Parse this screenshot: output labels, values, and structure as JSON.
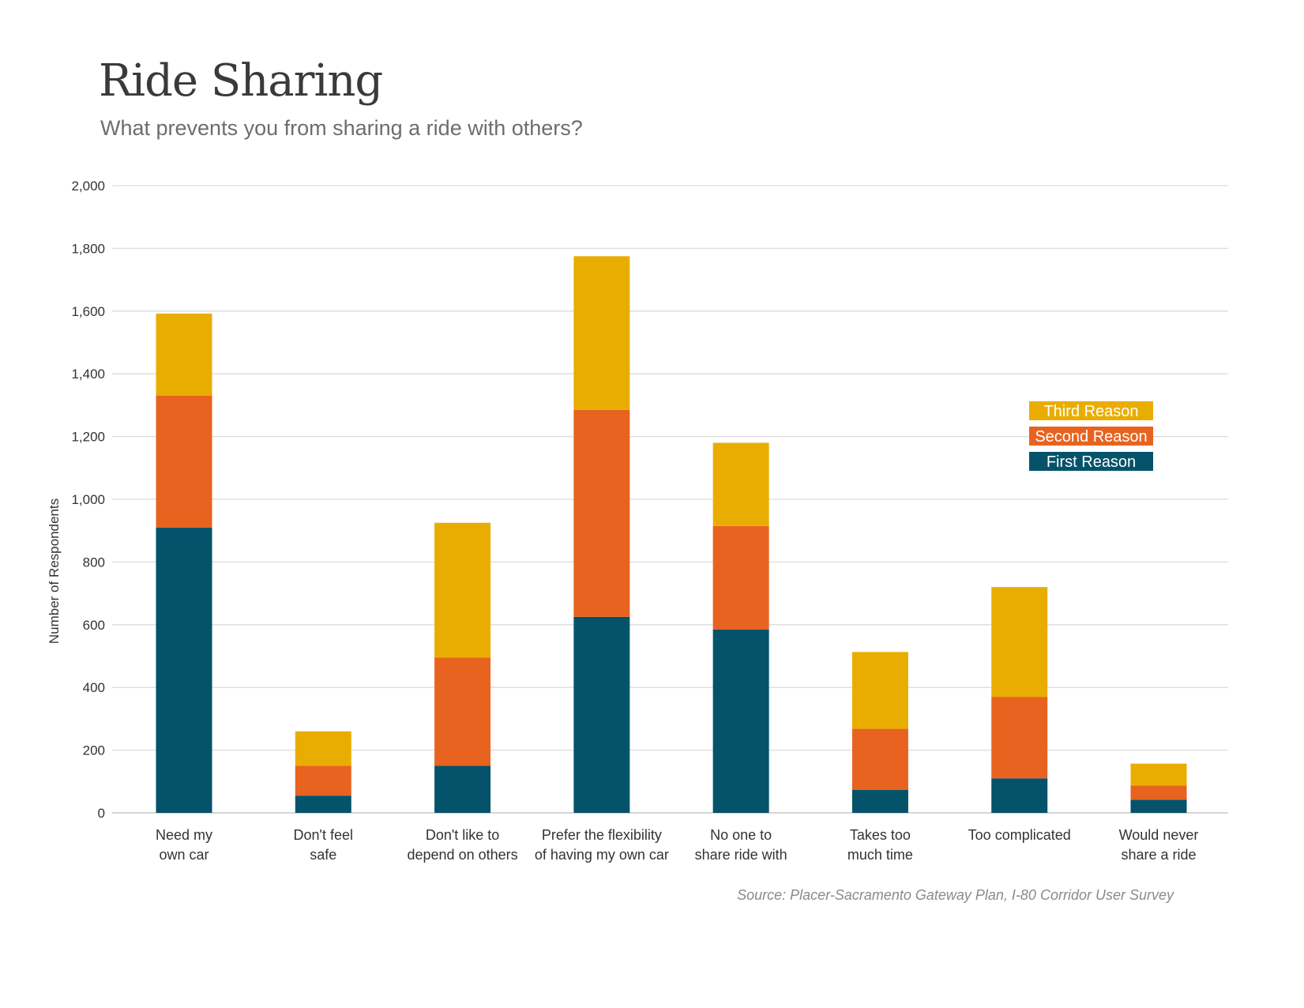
{
  "chart_data": {
    "type": "bar",
    "stacked": true,
    "title": "Ride Sharing",
    "subtitle": "What prevents you from sharing a ride with others?",
    "ylabel": "Number of Respondents",
    "xlabel": "",
    "ylim": [
      0,
      2000
    ],
    "yticks": [
      0,
      200,
      400,
      600,
      800,
      1000,
      1200,
      1400,
      1600,
      1800,
      2000
    ],
    "ytick_labels": [
      "0",
      "200",
      "400",
      "600",
      "800",
      "1,000",
      "1,200",
      "1,400",
      "1,600",
      "1,800",
      "2,000"
    ],
    "grid": true,
    "legend_position": "right",
    "categories": [
      [
        "Need my",
        "own car"
      ],
      [
        "Don't feel",
        "safe"
      ],
      [
        "Don't like to",
        "depend on others"
      ],
      [
        "Prefer the flexibility",
        "of having my own car"
      ],
      [
        "No one to",
        "share ride with"
      ],
      [
        "Takes too",
        "much time"
      ],
      [
        "Too complicated"
      ],
      [
        "Would never",
        "share a ride"
      ]
    ],
    "series": [
      {
        "name": "First Reason",
        "color": "#04536a",
        "values": [
          910,
          55,
          150,
          625,
          585,
          73,
          110,
          42
        ]
      },
      {
        "name": "Second Reason",
        "color": "#e8631f",
        "values": [
          420,
          95,
          345,
          660,
          330,
          195,
          260,
          45
        ]
      },
      {
        "name": "Third Reason",
        "color": "#e9ad02",
        "values": [
          262,
          110,
          430,
          490,
          265,
          245,
          350,
          70
        ]
      }
    ],
    "legend_order": [
      "Third Reason",
      "Second Reason",
      "First Reason"
    ],
    "source": "Source: Placer-Sacramento Gateway Plan, I-80 Corridor User Survey"
  }
}
